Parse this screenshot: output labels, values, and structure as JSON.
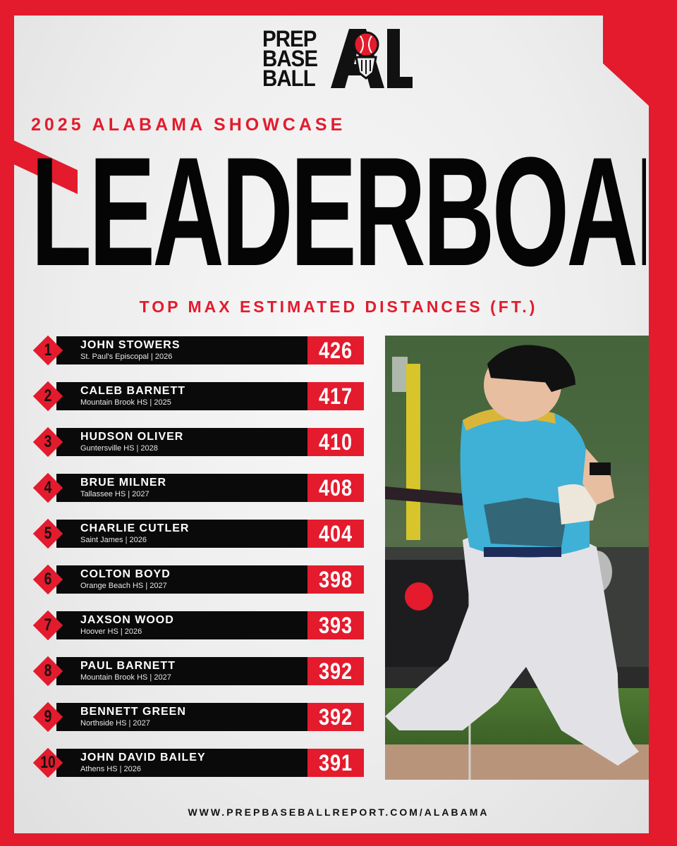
{
  "brand": {
    "logo_lines": [
      "PREP",
      "BASE",
      "BALL"
    ],
    "logo_mark": "AL",
    "accent_color": "#e31b2d"
  },
  "eyebrow": "2025 ALABAMA SHOWCASE",
  "headline": "LEADERBOARD",
  "subhead": "TOP MAX ESTIMATED DISTANCES (FT.)",
  "leaderboard": [
    {
      "rank": "1",
      "name": "JOHN STOWERS",
      "school": "St. Paul's Episcopal | 2026",
      "distance": "426"
    },
    {
      "rank": "2",
      "name": "CALEB BARNETT",
      "school": "Mountain Brook HS | 2025",
      "distance": "417"
    },
    {
      "rank": "3",
      "name": "HUDSON OLIVER",
      "school": "Guntersville HS | 2028",
      "distance": "410"
    },
    {
      "rank": "4",
      "name": "BRUE MILNER",
      "school": "Tallassee HS | 2027",
      "distance": "408"
    },
    {
      "rank": "5",
      "name": "CHARLIE CUTLER",
      "school": "Saint James | 2026",
      "distance": "404"
    },
    {
      "rank": "6",
      "name": "COLTON BOYD",
      "school": "Orange Beach HS | 2027",
      "distance": "398"
    },
    {
      "rank": "7",
      "name": "JAXSON WOOD",
      "school": "Hoover HS | 2026",
      "distance": "393"
    },
    {
      "rank": "8",
      "name": "PAUL BARNETT",
      "school": "Mountain Brook HS | 2027",
      "distance": "392"
    },
    {
      "rank": "9",
      "name": "BENNETT GREEN",
      "school": "Northside HS | 2027",
      "distance": "392"
    },
    {
      "rank": "10",
      "name": "JOHN DAVID BAILEY",
      "school": "Athens HS | 2026",
      "distance": "391"
    }
  ],
  "footer_url": "WWW.PREPBASEBALLREPORT.COM/ALABAMA"
}
